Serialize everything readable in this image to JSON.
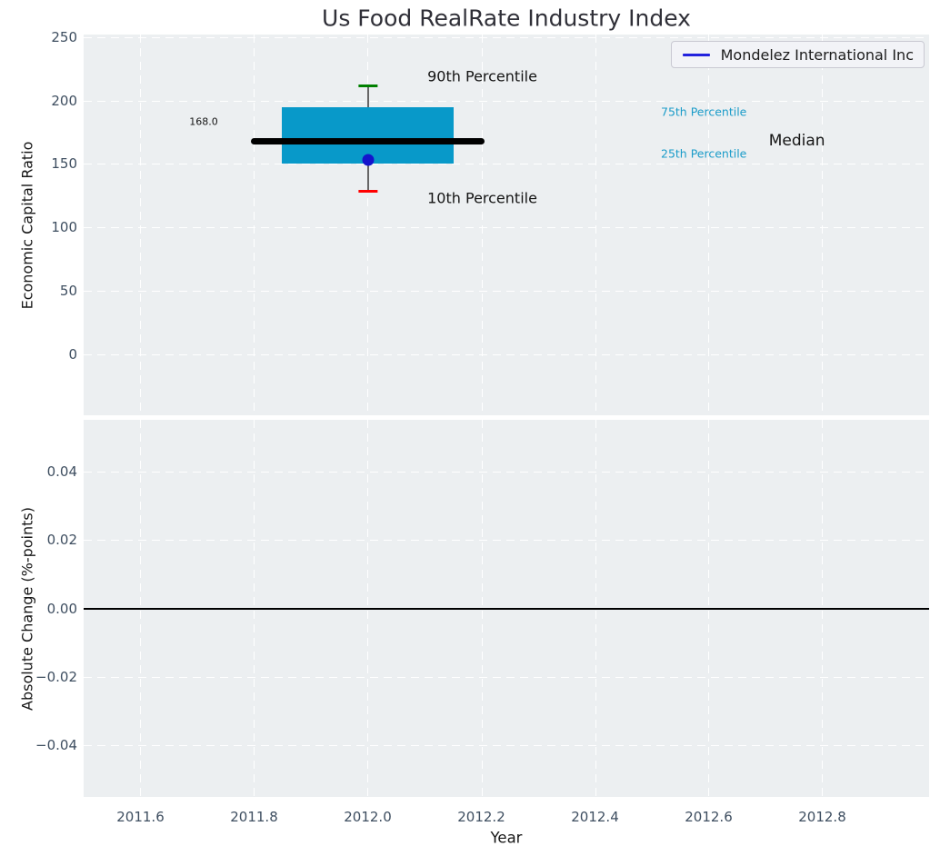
{
  "title": "Us Food RealRate Industry Index",
  "legend": {
    "label": "Mondelez International Inc"
  },
  "colors": {
    "plot_bg": "#eceff1",
    "grid": "#ffffff",
    "tick_label": "#3e4e60",
    "title": "#303038",
    "axis_label": "#161616",
    "annotation_text": "#141414",
    "percentile_text": "#1b9cc9",
    "box_fill": "#0899c9",
    "median_line": "#000000",
    "whisker": "#666666",
    "cap_high": "#008000",
    "cap_low": "#ff0000",
    "marker": "#1414cc",
    "legend_line": "#2222dd",
    "zero_line": "#000000"
  },
  "chart_data": [
    {
      "type": "boxplot",
      "title": "Us Food RealRate Industry Index",
      "ylabel": "Economic Capital Ratio",
      "xlabel": "",
      "xlim": [
        2011.5,
        2012.988
      ],
      "ylim": [
        -48,
        252
      ],
      "ytick_values": [
        0,
        50,
        100,
        150,
        200,
        250
      ],
      "ytick_labels": [
        "0",
        "50",
        "100",
        "150",
        "200",
        "250"
      ],
      "grid": true,
      "legend_entries": [
        "Mondelez International Inc"
      ],
      "legend_position": "upper right",
      "box": {
        "x": 2012.0,
        "p10": 129,
        "p25": 150,
        "median": 168,
        "p75": 195,
        "p90": 212,
        "company_value": 153,
        "median_value_label": "168.0",
        "box_halfwidth": 0.151,
        "median_halfwidth": 0.205,
        "cap_halfwidth": 0.017
      },
      "annotations": {
        "p90": {
          "text": "90th Percentile",
          "x": 2012.105,
          "y": 219
        },
        "p10": {
          "text": "10th Percentile",
          "x": 2012.105,
          "y": 123
        },
        "p75": {
          "text": "75th Percentile",
          "x": 2012.516,
          "y": 191
        },
        "p25": {
          "text": "25th Percentile",
          "x": 2012.516,
          "y": 158
        },
        "median": {
          "text": "Median",
          "x": 2012.706,
          "y": 168
        },
        "median_value": {
          "text": "168.0",
          "x": 2011.686,
          "y": 183
        }
      }
    },
    {
      "type": "line",
      "ylabel": "Absolute Change (%-points)",
      "xlabel": "Year",
      "xlim": [
        2011.5,
        2012.988
      ],
      "ylim": [
        -0.0553,
        0.0553
      ],
      "ytick_values": [
        -0.04,
        -0.02,
        0.0,
        0.02,
        0.04
      ],
      "ytick_labels": [
        "−0.04",
        "−0.02",
        "0.00",
        "0.02",
        "0.04"
      ],
      "xtick_values": [
        2011.6,
        2011.8,
        2012.0,
        2012.2,
        2012.4,
        2012.6,
        2012.8
      ],
      "xtick_labels": [
        "2011.6",
        "2011.8",
        "2012.0",
        "2012.2",
        "2012.4",
        "2012.6",
        "2012.8"
      ],
      "grid": true,
      "zero_line": 0.0,
      "series": []
    }
  ]
}
